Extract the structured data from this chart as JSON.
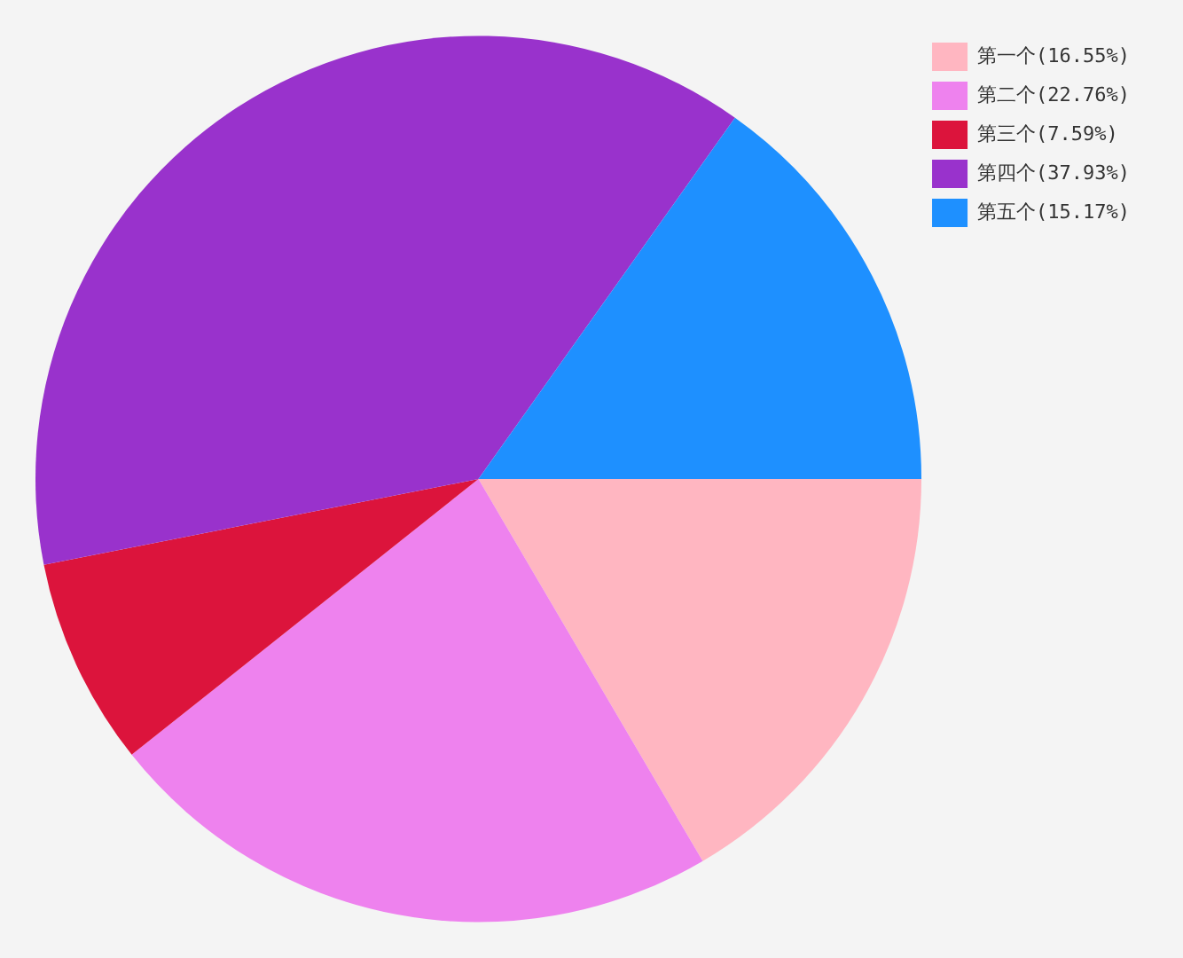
{
  "chart_data": {
    "type": "pie",
    "categories": [
      "第一个(16.55%)",
      "第二个(22.76%)",
      "第三个(7.59%)",
      "第四个(37.93%)",
      "第五个(15.17%)"
    ],
    "values": [
      16.55,
      22.76,
      7.59,
      37.93,
      15.17
    ],
    "colors": [
      "#ffb6c1",
      "#ee82ee",
      "#dc143c",
      "#9932cc",
      "#1e90ff"
    ],
    "legend": "top right"
  }
}
